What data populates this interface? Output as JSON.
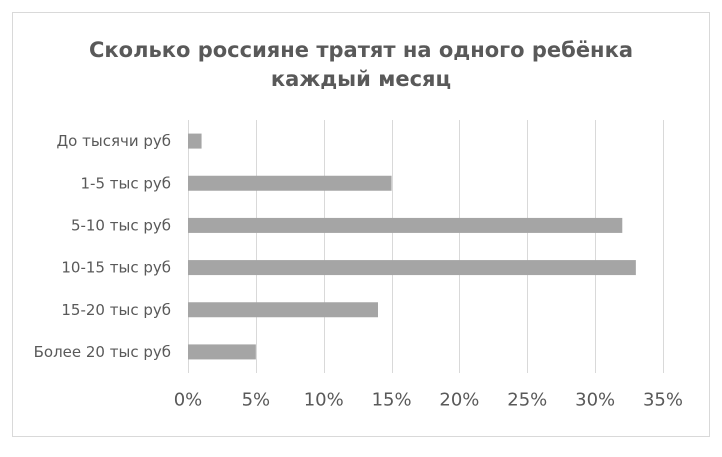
{
  "chart_data": {
    "type": "bar",
    "orientation": "horizontal",
    "title_lines": [
      "Сколько россияне тратят на одного ребёнка",
      "каждый месяц"
    ],
    "categories": [
      "До тысячи руб",
      "1-5 тыс руб",
      "5-10 тыс руб",
      "10-15 тыс руб",
      "15-20 тыс руб",
      "Более 20 тыс руб"
    ],
    "values": [
      1,
      15,
      32,
      33,
      14,
      5
    ],
    "xlim": [
      0,
      35
    ],
    "x_ticks": [
      0,
      5,
      10,
      15,
      20,
      25,
      30,
      35
    ],
    "x_tick_labels": [
      "0%",
      "5%",
      "10%",
      "15%",
      "20%",
      "25%",
      "30%",
      "35%"
    ],
    "grid": true,
    "legend": "none",
    "bar_color": "#a5a5a5",
    "grid_color": "#d9d9d9",
    "text_color": "#595959"
  }
}
